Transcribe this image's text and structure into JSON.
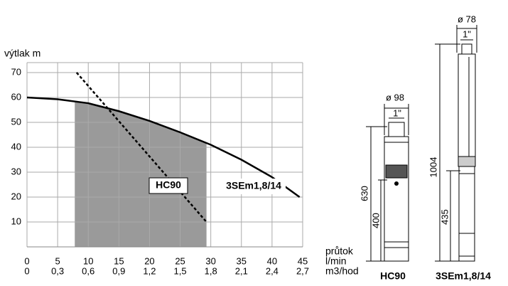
{
  "chart_data": {
    "type": "line",
    "y_label": "výtlak  m",
    "x_label": [
      "průtok",
      "l/min",
      "m3/hod"
    ],
    "xlim": [
      0,
      45
    ],
    "ylim": [
      0,
      70
    ],
    "xticks": [
      0,
      5,
      10,
      15,
      20,
      25,
      30,
      35,
      40,
      45
    ],
    "x2_labels": [
      "0",
      "0,3",
      "0,6",
      "0,9",
      "1,2",
      "1,5",
      "1,8",
      "2,1",
      "2,4",
      "2,7"
    ],
    "yticks": [
      10,
      20,
      30,
      40,
      50,
      60,
      70
    ],
    "grid": true,
    "shaded_range": [
      7.8,
      29.3
    ],
    "shade_color": "#9a9a9a",
    "series": [
      {
        "name": "3SEm1,8/14",
        "color": "#000000",
        "dashed": false,
        "x": [
          0,
          5,
          10,
          15,
          20,
          25,
          30,
          35,
          40,
          44.5
        ],
        "values": [
          60,
          59.3,
          57.7,
          54.5,
          50.6,
          46,
          41,
          35,
          28,
          20
        ]
      },
      {
        "name": "HC90",
        "color": "#000000",
        "dashed": true,
        "x": [
          8.1,
          29.3
        ],
        "values": [
          70,
          10
        ]
      }
    ]
  },
  "drawings": [
    {
      "label": "HC90",
      "diameter": "ø 98",
      "thread": "1\"",
      "heights": [
        "630",
        "400"
      ]
    },
    {
      "label": "3SEm1,8/14",
      "diameter": "ø 78",
      "thread": "1\"",
      "heights": [
        "1004",
        "435"
      ]
    }
  ]
}
